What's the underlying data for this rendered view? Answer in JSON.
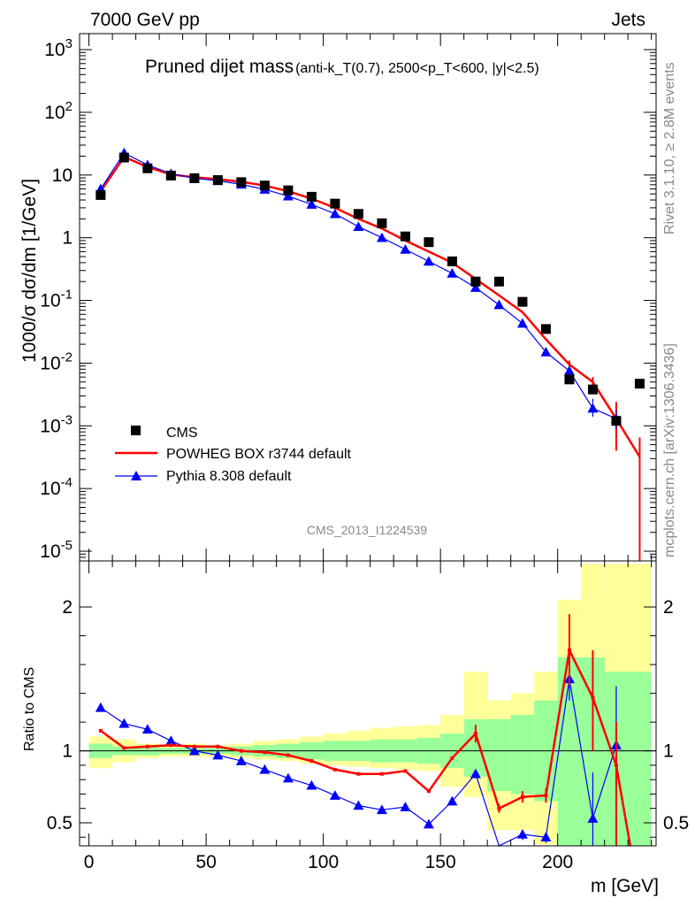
{
  "header": {
    "left": "7000 GeV pp",
    "right": "Jets"
  },
  "side_labels": {
    "rivet": "Rivet 3.1.10, ≥ 2.8M events",
    "mcplots": "mcplots.cern.ch [arXiv:1306.3436]"
  },
  "analysis_tag": "CMS_2013_I1224539",
  "chart_data": [
    {
      "type": "scatter",
      "title": "Pruned dijet mass",
      "title_detail": "(anti-k_T(0.7), 2500<p_T<600, |y|<2.5)",
      "ylabel": "1000/σ dσ/dm [1/GeV]",
      "xlabel": "",
      "y_scale": "log",
      "xlim": [
        -4,
        242
      ],
      "ylim": [
        7e-06,
        1800
      ],
      "x_ticks": [
        0,
        50,
        100,
        150,
        200
      ],
      "y_tick_labels": [
        "10^3",
        "10^2",
        "10",
        "1",
        "10^-1",
        "10^-2",
        "10^-3",
        "10^-4",
        "10^-5"
      ],
      "legend_placement": "bottom-left",
      "series": [
        {
          "name": "CMS",
          "style": "square-markers",
          "color": "#000000",
          "x": [
            5,
            15,
            25,
            35,
            45,
            55,
            65,
            75,
            85,
            95,
            105,
            115,
            125,
            135,
            145,
            155,
            165,
            175,
            185,
            195,
            205,
            215,
            225,
            235
          ],
          "y": [
            4.8,
            19.0,
            12.8,
            9.8,
            8.9,
            8.3,
            7.7,
            6.8,
            5.7,
            4.5,
            3.5,
            2.4,
            1.7,
            1.05,
            0.85,
            0.42,
            0.2,
            0.2,
            0.095,
            0.035,
            0.0055,
            0.0038,
            0.0012,
            0.0047
          ]
        },
        {
          "name": "POWHEG BOX r3744 default",
          "style": "line",
          "color": "#ff0000",
          "x": [
            5,
            15,
            25,
            35,
            45,
            55,
            65,
            75,
            85,
            95,
            105,
            115,
            125,
            135,
            145,
            155,
            165,
            175,
            185,
            195,
            205,
            215,
            225,
            235
          ],
          "y": [
            5.5,
            19.5,
            13.4,
            10.2,
            9.2,
            8.6,
            7.8,
            6.8,
            5.5,
            4.2,
            3.0,
            2.0,
            1.4,
            0.9,
            0.6,
            0.4,
            0.22,
            0.12,
            0.065,
            0.024,
            0.0095,
            0.005,
            0.0013,
            0.00032
          ]
        },
        {
          "name": "Pythia 8.308 default",
          "style": "line-triangle-markers",
          "color": "#0000ff",
          "x": [
            5,
            15,
            25,
            35,
            45,
            55,
            65,
            75,
            85,
            95,
            105,
            115,
            125,
            135,
            145,
            155,
            165,
            175,
            185,
            195,
            205,
            215,
            225
          ],
          "y": [
            6.0,
            22.5,
            14.5,
            10.5,
            8.9,
            8.1,
            7.1,
            5.9,
            4.6,
            3.4,
            2.4,
            1.5,
            1.0,
            0.65,
            0.42,
            0.27,
            0.16,
            0.085,
            0.043,
            0.015,
            0.0075,
            0.0019,
            0.0013
          ]
        }
      ]
    },
    {
      "type": "line",
      "title": "",
      "ylabel": "Ratio to CMS",
      "xlabel": "m [GeV]",
      "xlim": [
        -4,
        242
      ],
      "ylim": [
        0.34,
        2.32
      ],
      "x_ticks": [
        0,
        50,
        100,
        150,
        200
      ],
      "y_ticks": [
        0.5,
        1,
        2
      ],
      "reference_line": 1,
      "bins": [
        0,
        10,
        20,
        30,
        40,
        50,
        60,
        70,
        80,
        90,
        100,
        110,
        120,
        130,
        140,
        150,
        160,
        170,
        180,
        190,
        200,
        210,
        220,
        240
      ],
      "band_stat": [
        [
          0.95,
          1.05
        ],
        [
          0.97,
          1.03
        ],
        [
          0.97,
          1.03
        ],
        [
          0.98,
          1.02
        ],
        [
          0.98,
          1.02
        ],
        [
          0.98,
          1.02
        ],
        [
          0.97,
          1.03
        ],
        [
          0.96,
          1.04
        ],
        [
          0.95,
          1.05
        ],
        [
          0.94,
          1.06
        ],
        [
          0.93,
          1.07
        ],
        [
          0.93,
          1.07
        ],
        [
          0.92,
          1.08
        ],
        [
          0.92,
          1.08
        ],
        [
          0.91,
          1.09
        ],
        [
          0.88,
          1.12
        ],
        [
          0.82,
          1.22
        ],
        [
          0.72,
          1.22
        ],
        [
          0.7,
          1.25
        ],
        [
          0.65,
          1.35
        ],
        [
          0.2,
          1.65
        ],
        [
          0.2,
          1.65
        ],
        [
          0.2,
          1.55
        ]
      ],
      "band_total": [
        [
          0.88,
          1.1
        ],
        [
          0.92,
          1.08
        ],
        [
          0.95,
          1.05
        ],
        [
          0.96,
          1.04
        ],
        [
          0.96,
          1.05
        ],
        [
          0.96,
          1.04
        ],
        [
          0.95,
          1.05
        ],
        [
          0.94,
          1.07
        ],
        [
          0.93,
          1.08
        ],
        [
          0.91,
          1.1
        ],
        [
          0.9,
          1.12
        ],
        [
          0.89,
          1.14
        ],
        [
          0.88,
          1.16
        ],
        [
          0.87,
          1.17
        ],
        [
          0.86,
          1.18
        ],
        [
          0.75,
          1.25
        ],
        [
          0.68,
          1.55
        ],
        [
          0.45,
          1.35
        ],
        [
          0.45,
          1.4
        ],
        [
          0.35,
          1.55
        ],
        [
          0.2,
          2.05
        ],
        [
          0.2,
          2.3
        ],
        [
          0.2,
          2.3
        ]
      ],
      "series": [
        {
          "name": "POWHEG BOX r3744 default",
          "color": "#ff0000",
          "x": [
            5,
            15,
            25,
            35,
            45,
            55,
            65,
            75,
            85,
            95,
            105,
            115,
            125,
            135,
            145,
            155,
            165,
            175,
            185,
            195,
            205,
            215,
            225,
            231
          ],
          "y": [
            1.14,
            1.02,
            1.03,
            1.04,
            1.03,
            1.03,
            1.0,
            0.99,
            0.97,
            0.93,
            0.87,
            0.84,
            0.84,
            0.86,
            0.72,
            0.95,
            1.12,
            0.6,
            0.68,
            0.69,
            1.7,
            1.37,
            0.9,
            0.3
          ]
        },
        {
          "name": "Pythia 8.308 default",
          "color": "#0000ff",
          "x": [
            5,
            15,
            25,
            35,
            45,
            55,
            65,
            75,
            85,
            95,
            105,
            115,
            125,
            135,
            145,
            155,
            165,
            175,
            185,
            195,
            205,
            215,
            225
          ],
          "y": [
            1.3,
            1.19,
            1.15,
            1.07,
            1.0,
            0.97,
            0.93,
            0.87,
            0.81,
            0.76,
            0.69,
            0.62,
            0.59,
            0.61,
            0.49,
            0.65,
            0.84,
            0.32,
            0.42,
            0.4,
            1.5,
            0.53,
            1.04
          ]
        }
      ]
    }
  ]
}
